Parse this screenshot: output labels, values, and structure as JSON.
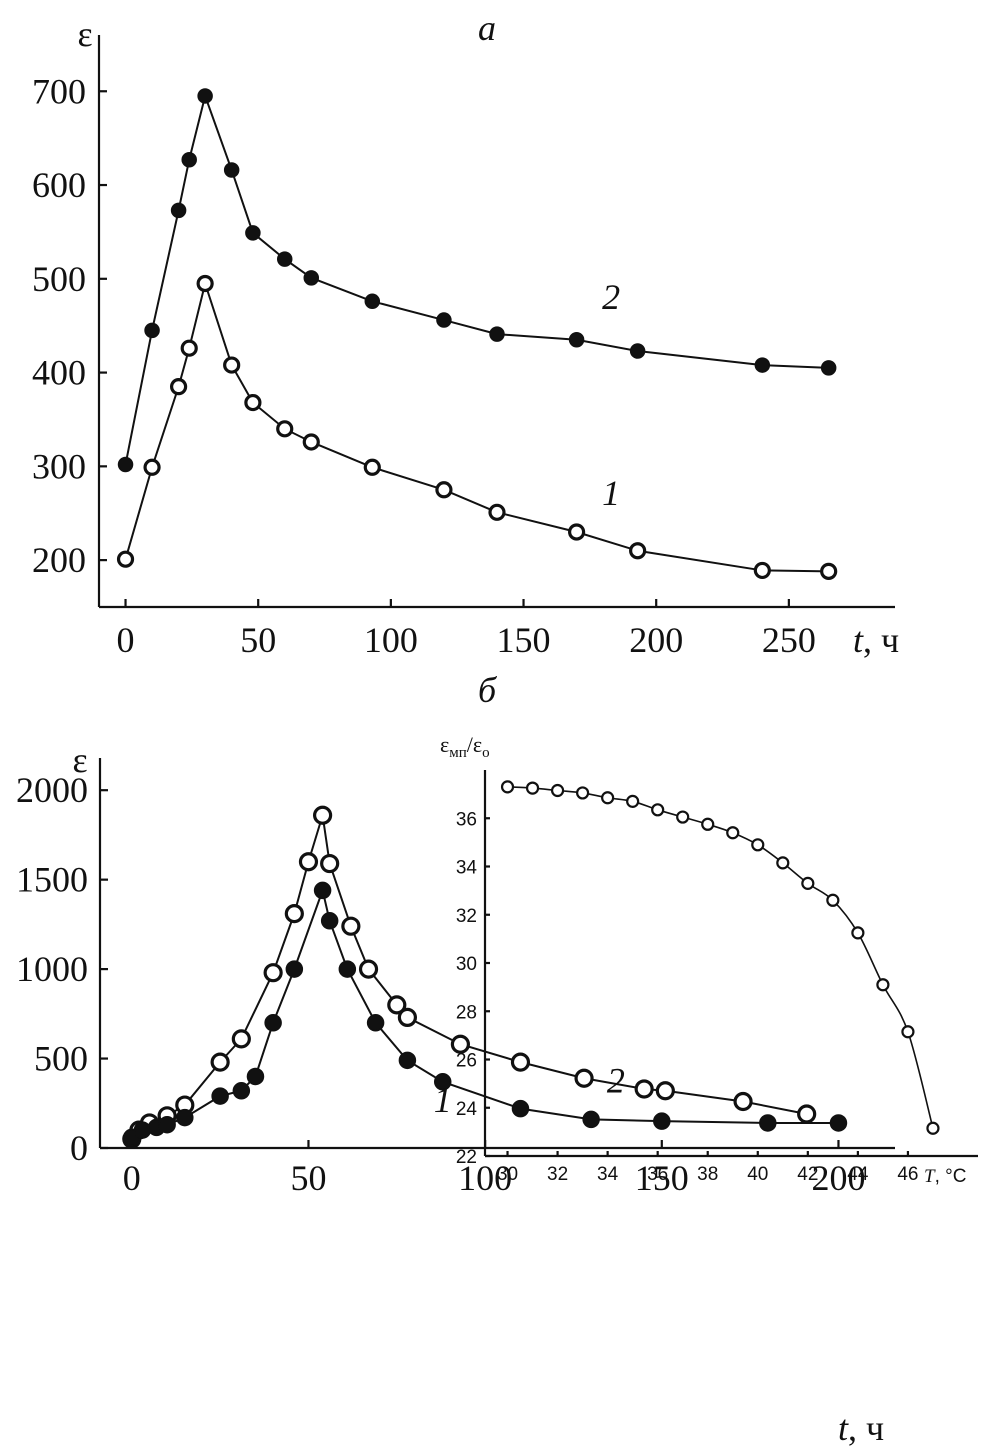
{
  "chart_data": [
    {
      "type": "line",
      "title": "а",
      "xlabel_var": "t",
      "xlabel_unit": ", ч",
      "ylabel": "ε",
      "xlim": [
        -10,
        290
      ],
      "ylim": [
        150,
        760
      ],
      "x_ticks": [
        "0",
        "50",
        "100",
        "150",
        "200",
        "250"
      ],
      "x_tick_values": [
        0,
        50,
        100,
        150,
        200,
        250
      ],
      "y_ticks": [
        "200",
        "300",
        "400",
        "500",
        "600",
        "700"
      ],
      "y_tick_values": [
        200,
        300,
        400,
        500,
        600,
        700
      ],
      "series": [
        {
          "name": "2",
          "marker": "filled",
          "label_at": [
            183,
            468
          ],
          "x": [
            0,
            10,
            20,
            24,
            30,
            40,
            48,
            60,
            70,
            93,
            120,
            140,
            170,
            193,
            240,
            265
          ],
          "y": [
            302,
            445,
            573,
            627,
            695,
            616,
            549,
            521,
            501,
            476,
            456,
            441,
            435,
            423,
            408,
            405
          ]
        },
        {
          "name": "1",
          "marker": "open",
          "label_at": [
            183,
            259
          ],
          "x": [
            0,
            10,
            20,
            24,
            30,
            40,
            48,
            60,
            70,
            93,
            120,
            140,
            170,
            193,
            240,
            265
          ],
          "y": [
            201,
            299,
            385,
            426,
            495,
            408,
            368,
            340,
            326,
            299,
            275,
            251,
            230,
            210,
            189,
            188
          ]
        }
      ]
    },
    {
      "type": "line",
      "title": "б",
      "xlabel_var": "t",
      "xlabel_unit": ", ч",
      "ylabel": "ε",
      "xlim": [
        -9,
        216
      ],
      "ylim": [
        0,
        2180
      ],
      "x_ticks": [
        "0",
        "50",
        "100",
        "150",
        "200"
      ],
      "x_tick_values": [
        0,
        50,
        100,
        150,
        200
      ],
      "y_ticks": [
        "0",
        "500",
        "1000",
        "1500",
        "2000"
      ],
      "y_tick_values": [
        0,
        500,
        1000,
        1500,
        2000
      ],
      "series": [
        {
          "name": "2",
          "marker": "open",
          "label_at": [
            137,
            310
          ],
          "x": [
            0,
            2,
            5,
            10,
            15,
            25,
            31,
            40,
            46,
            50,
            54,
            56,
            62,
            67,
            75,
            78,
            93,
            110,
            128,
            145,
            151,
            173,
            191
          ],
          "y": [
            50,
            100,
            140,
            180,
            240,
            480,
            610,
            980,
            1310,
            1600,
            1860,
            1590,
            1240,
            1000,
            800,
            730,
            580,
            480,
            390,
            330,
            320,
            260,
            190
          ]
        },
        {
          "name": "1",
          "marker": "filled",
          "label_at": [
            88,
            200
          ],
          "x": [
            0,
            3,
            7,
            10,
            15,
            25,
            31,
            35,
            40,
            46,
            54,
            56,
            61,
            69,
            78,
            88,
            110,
            130,
            150,
            180,
            200
          ],
          "y": [
            60,
            100,
            115,
            130,
            170,
            290,
            320,
            400,
            700,
            1000,
            1440,
            1270,
            1000,
            700,
            490,
            370,
            220,
            160,
            150,
            140,
            140
          ]
        }
      ]
    },
    {
      "type": "line",
      "title": "",
      "xlabel_var": "T",
      "xlabel_unit": ", °C",
      "ylabel_main": "ε",
      "ylabel_sub_num": "мп",
      "ylabel_slash": "/ε",
      "ylabel_sub_den": "о",
      "xlim": [
        29.1,
        48.8
      ],
      "ylim": [
        22,
        38
      ],
      "x_ticks": [
        "30",
        "32",
        "34",
        "36",
        "38",
        "40",
        "42",
        "44",
        "46"
      ],
      "x_tick_values": [
        30,
        32,
        34,
        36,
        38,
        40,
        42,
        44,
        46
      ],
      "y_ticks": [
        "22",
        "24",
        "26",
        "28",
        "30",
        "32",
        "34",
        "36"
      ],
      "y_tick_values": [
        22,
        24,
        26,
        28,
        30,
        32,
        34,
        36
      ],
      "series": [
        {
          "name": "ε_мп/ε_о",
          "marker": "open",
          "x": [
            30,
            31,
            32,
            33,
            34,
            35,
            36,
            37,
            38,
            39,
            40,
            41,
            42,
            43,
            44,
            45,
            46,
            47
          ],
          "y": [
            37.3,
            37.25,
            37.15,
            37.05,
            36.85,
            36.7,
            36.35,
            36.05,
            35.75,
            35.4,
            34.9,
            34.15,
            33.3,
            32.6,
            31.25,
            29.1,
            27.15,
            23.15
          ]
        }
      ]
    }
  ]
}
